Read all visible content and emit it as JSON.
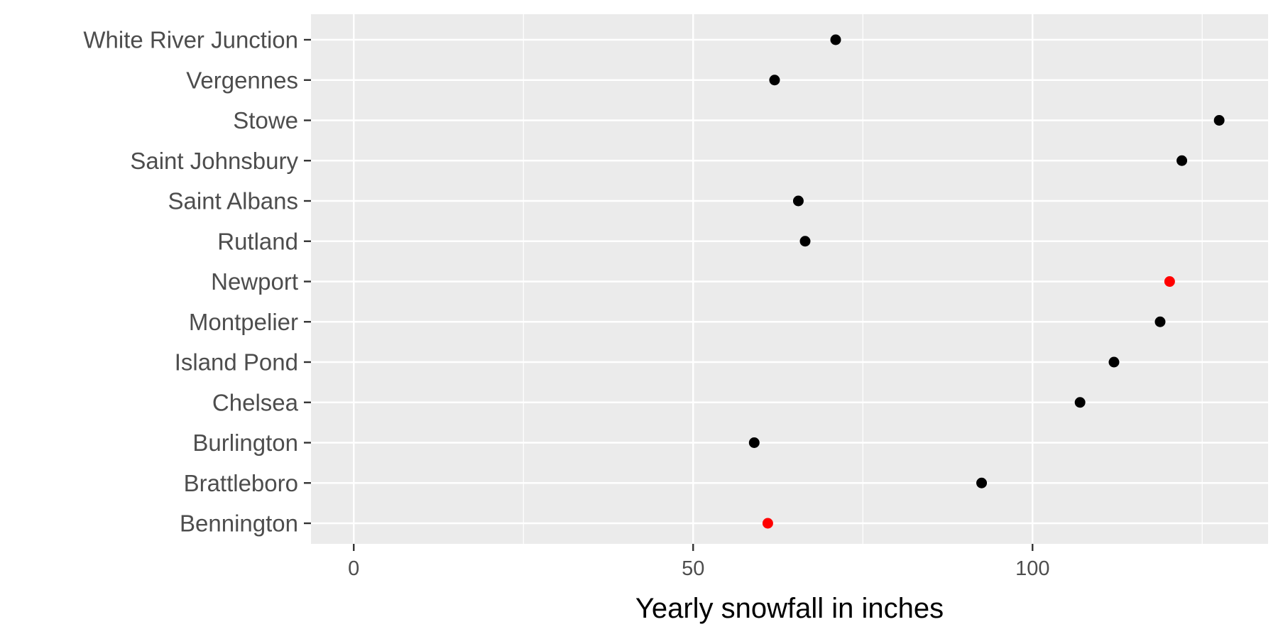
{
  "chart_data": {
    "type": "scatter",
    "title": "",
    "xlabel": "Yearly snowfall in inches",
    "ylabel": "",
    "xlim": [
      -6.3,
      134.7
    ],
    "x_ticks": [
      0,
      50,
      100
    ],
    "x_minor_ticks": [
      25,
      75,
      125
    ],
    "grid": true,
    "legend": "none",
    "categories": [
      "Bennington",
      "Brattleboro",
      "Burlington",
      "Chelsea",
      "Island Pond",
      "Montpelier",
      "Newport",
      "Rutland",
      "Saint Albans",
      "Saint Johnsbury",
      "Stowe",
      "Vergennes",
      "White River Junction"
    ],
    "values": [
      61.0,
      92.5,
      59.0,
      107.0,
      112.0,
      118.8,
      120.2,
      66.5,
      65.5,
      122.0,
      127.5,
      62.0,
      71.0
    ],
    "point_colors": [
      "#ff0000",
      "#000000",
      "#000000",
      "#000000",
      "#000000",
      "#000000",
      "#ff0000",
      "#000000",
      "#000000",
      "#000000",
      "#000000",
      "#000000",
      "#000000"
    ],
    "colors": {
      "panel": "#ebebeb",
      "grid": "#ffffff",
      "highlight": "#ff0000",
      "point": "#000000"
    }
  }
}
